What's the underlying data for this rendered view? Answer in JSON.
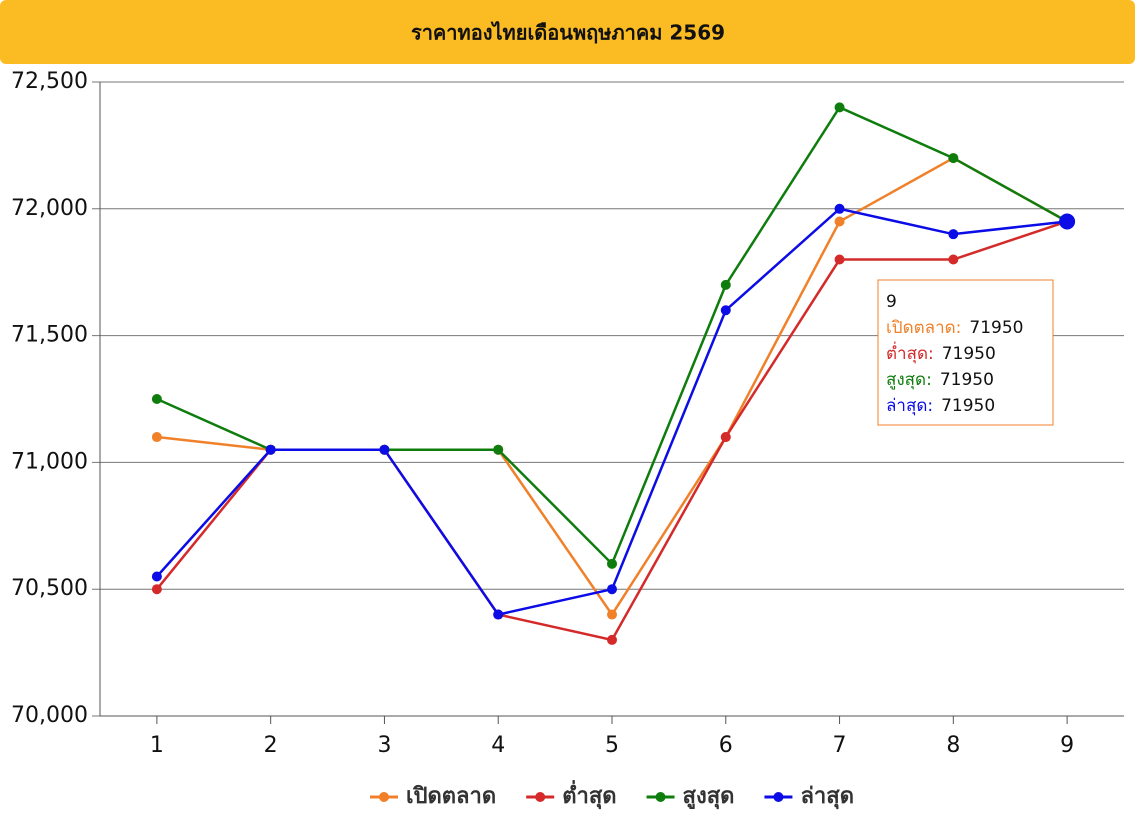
{
  "chart_data": {
    "type": "line",
    "title": "ราคาทองไทยเดือนพฤษภาคม 2569",
    "categories": [
      "1",
      "2",
      "3",
      "4",
      "5",
      "6",
      "7",
      "8",
      "9"
    ],
    "series": [
      {
        "name": "เปิดตลาด",
        "color": "#f0812a",
        "values": [
          71100,
          71050,
          71050,
          71050,
          70400,
          71100,
          71950,
          72200,
          71950
        ]
      },
      {
        "name": "ต่ำสุด",
        "color": "#d42a2a",
        "values": [
          70500,
          71050,
          71050,
          70400,
          70300,
          71100,
          71800,
          71800,
          71950
        ]
      },
      {
        "name": "สูงสุด",
        "color": "#0e7d0e",
        "values": [
          71250,
          71050,
          71050,
          71050,
          70600,
          71700,
          72400,
          72200,
          71950
        ]
      },
      {
        "name": "ล่าสุด",
        "color": "#0c0ce6",
        "values": [
          70550,
          71050,
          71050,
          70400,
          70500,
          71600,
          72000,
          71900,
          71950
        ]
      }
    ],
    "ylim": [
      70000,
      72500
    ],
    "yticks": [
      {
        "value": 70000,
        "label": "70,000"
      },
      {
        "value": 70500,
        "label": "70,500"
      },
      {
        "value": 71000,
        "label": "71,000"
      },
      {
        "value": 71500,
        "label": "71,500"
      },
      {
        "value": 72000,
        "label": "72,000"
      },
      {
        "value": 72500,
        "label": "72,500"
      }
    ],
    "grid": true,
    "legend": "bottom",
    "tooltip_labels": [
      "เปิดตลาด:",
      "ต่ำสุด:",
      "สูงสุด:",
      "ล่าสุด:"
    ]
  }
}
